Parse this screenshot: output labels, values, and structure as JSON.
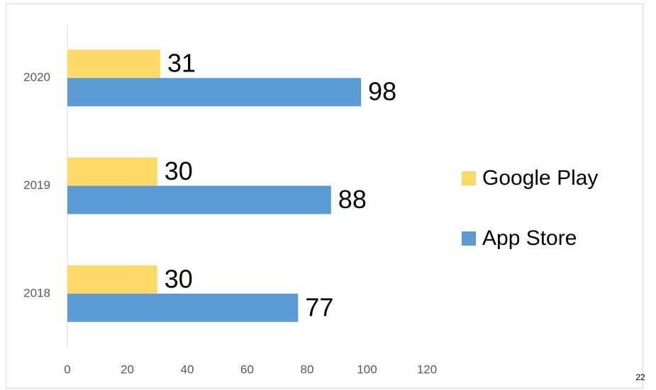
{
  "chart_data": {
    "type": "barh",
    "categories": [
      "2018",
      "2019",
      "2020"
    ],
    "series": [
      {
        "name": "Google Play",
        "color": "#FFD966",
        "values": [
          30,
          30,
          31
        ]
      },
      {
        "name": "App Store",
        "color": "#5B9BD5",
        "values": [
          77,
          88,
          98
        ]
      }
    ],
    "xlim": [
      0,
      120
    ],
    "xticks": [
      0,
      20,
      40,
      60,
      80,
      100,
      120
    ],
    "grid": false,
    "legend": "right"
  },
  "page_number": 22
}
